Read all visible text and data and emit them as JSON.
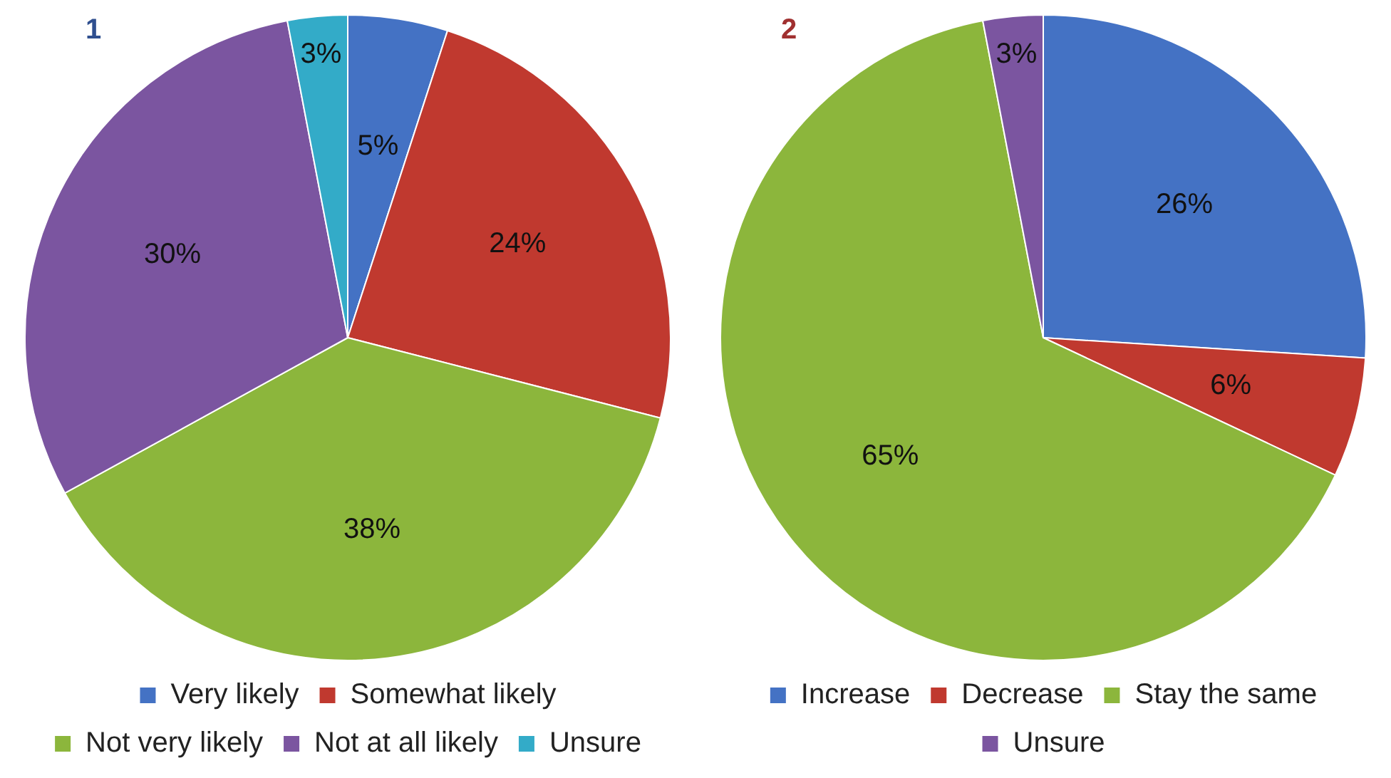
{
  "chart_data": [
    {
      "type": "pie",
      "title": "1",
      "categories": [
        "Very likely",
        "Somewhat likely",
        "Not very likely",
        "Not at all likely",
        "Unsure"
      ],
      "values": [
        5,
        24,
        38,
        30,
        3
      ],
      "value_labels": [
        "5%",
        "24%",
        "38%",
        "30%",
        "3%"
      ],
      "colors": [
        "#4472c4",
        "#c0392f",
        "#8cb63c",
        "#7b55a0",
        "#33abc8"
      ],
      "legend": "bottom"
    },
    {
      "type": "pie",
      "title": "2",
      "categories": [
        "Increase",
        "Decrease",
        "Stay the same",
        "Unsure"
      ],
      "values": [
        26,
        6,
        65,
        3
      ],
      "value_labels": [
        "26%",
        "6%",
        "65%",
        "3%"
      ],
      "colors": [
        "#4472c4",
        "#c0392f",
        "#8cb63c",
        "#7b55a0"
      ],
      "legend": "bottom"
    }
  ]
}
